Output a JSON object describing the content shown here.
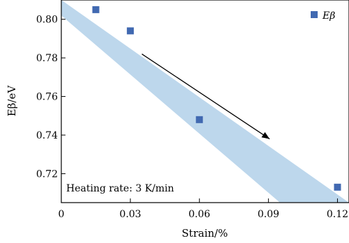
{
  "chart_data": {
    "type": "scatter",
    "x": [
      0.015,
      0.03,
      0.06,
      0.12
    ],
    "y": [
      0.805,
      0.794,
      0.748,
      0.713
    ],
    "series": [
      {
        "name": "Eβ",
        "x": [
          0.015,
          0.03,
          0.06,
          0.12
        ],
        "y": [
          0.805,
          0.794,
          0.748,
          0.713
        ],
        "color": "#4169b1"
      }
    ],
    "band": {
      "upper": [
        [
          0.0,
          0.81
        ],
        [
          0.125,
          0.705
        ]
      ],
      "lower": [
        [
          0.0,
          0.802
        ],
        [
          0.095,
          0.705
        ]
      ],
      "color": "#bdd7ec"
    },
    "arrow": {
      "from": [
        0.035,
        0.782
      ],
      "to": [
        0.0905,
        0.738
      ]
    },
    "annotation": "Heating rate: 3 K/min",
    "xlabel": "Strain/%",
    "ylabel": "Eβ/eV",
    "xlim": [
      0.0,
      0.125
    ],
    "ylim": [
      0.705,
      0.81
    ],
    "xticks": [
      0,
      0.03,
      0.06,
      0.09,
      0.12
    ],
    "xtick_labels": [
      "0",
      "0.03",
      "0.06",
      "0.09",
      "0.12"
    ],
    "yticks": [
      0.72,
      0.74,
      0.76,
      0.78,
      0.8
    ],
    "ytick_labels": [
      "0.72",
      "0.74",
      "0.76",
      "0.78",
      "0.80"
    ],
    "legend": {
      "position": "top-right",
      "label": "Eβ"
    },
    "grid": false
  }
}
